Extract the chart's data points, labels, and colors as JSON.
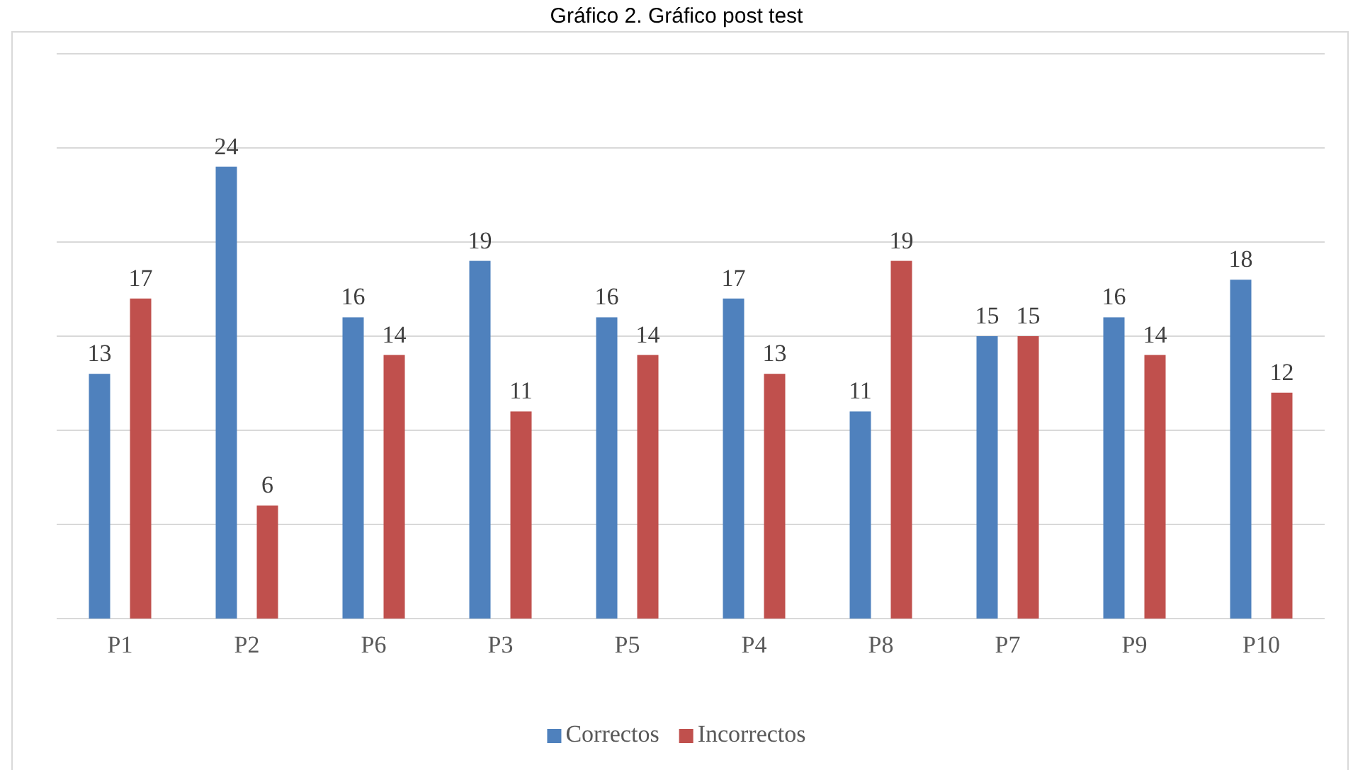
{
  "chart_data": {
    "type": "bar",
    "title": "Gráfico 2. Gráfico post test",
    "categories": [
      "P1",
      "P2",
      "P6",
      "P3",
      "P5",
      "P4",
      "P8",
      "P7",
      "P9",
      "P10"
    ],
    "series": [
      {
        "name": "Correctos",
        "color": "#4f81bd",
        "values": [
          13,
          24,
          16,
          19,
          16,
          17,
          11,
          15,
          16,
          18
        ]
      },
      {
        "name": "Incorrectos",
        "color": "#c0504d",
        "values": [
          17,
          6,
          14,
          11,
          14,
          13,
          19,
          15,
          14,
          12
        ]
      }
    ],
    "ylim": [
      0,
      30
    ],
    "yticks": [
      {
        "value": 0,
        "label": null
      },
      {
        "value": 5,
        "label": null
      },
      {
        "value": 10,
        "label": null
      },
      {
        "value": 15,
        "label": null
      },
      {
        "value": 20,
        "label": null
      },
      {
        "value": 25,
        "label": null
      },
      {
        "value": 30,
        "label": null
      }
    ],
    "tick_labels": "x",
    "grid": "y",
    "data_labels": true,
    "legend": "bottom"
  }
}
